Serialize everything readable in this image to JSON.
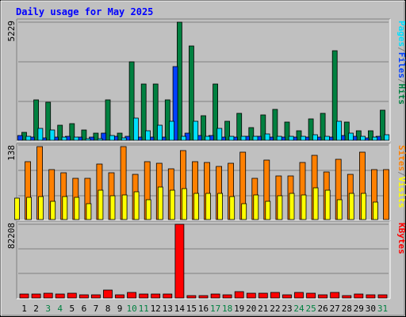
{
  "title": "Daily usage for May 2025",
  "colors": {
    "frame_bg": "#c0c0c0",
    "plot_bg": "#c0c0c0",
    "grid": "#808080",
    "title": "#0000ff",
    "hits": "#008040",
    "files": "#0040ff",
    "pages": "#00e0ff",
    "visits": "#ffff00",
    "sites": "#ff8000",
    "kbytes": "#ff0000",
    "weekend_label": "#008040",
    "weekday_label": "#000000"
  },
  "chart_data": [
    {
      "type": "bar",
      "name": "hits-files-pages",
      "ymax_label": "5229",
      "ylim": [
        0,
        5229
      ],
      "legend": [
        "Pages",
        "/",
        "Files",
        "/",
        "Hits"
      ],
      "x": [
        "1",
        "2",
        "3",
        "4",
        "5",
        "6",
        "7",
        "8",
        "9",
        "10",
        "11",
        "12",
        "13",
        "14",
        "15",
        "16",
        "17",
        "18",
        "19",
        "20",
        "21",
        "22",
        "23",
        "24",
        "25",
        "26",
        "27",
        "28",
        "29",
        "30",
        "31"
      ],
      "series": [
        {
          "name": "Hits",
          "values": [
            350,
            1780,
            1700,
            680,
            720,
            440,
            320,
            1780,
            320,
            3460,
            2480,
            2480,
            1780,
            5229,
            4180,
            1080,
            2480,
            840,
            1180,
            550,
            1110,
            1380,
            800,
            420,
            930,
            1200,
            3950,
            820,
            420,
            420,
            1350
          ]
        },
        {
          "name": "Files",
          "values": [
            210,
            150,
            120,
            150,
            190,
            140,
            140,
            320,
            170,
            190,
            150,
            150,
            150,
            3260,
            330,
            200,
            200,
            140,
            130,
            190,
            160,
            140,
            130,
            140,
            150,
            140,
            150,
            220,
            180,
            120,
            160
          ]
        },
        {
          "name": "Pages",
          "values": [
            170,
            510,
            440,
            140,
            140,
            80,
            70,
            200,
            100,
            1000,
            420,
            650,
            840,
            170,
            830,
            170,
            520,
            170,
            170,
            170,
            280,
            170,
            170,
            180,
            240,
            170,
            850,
            300,
            160,
            150,
            230
          ]
        }
      ]
    },
    {
      "type": "bar",
      "name": "visits-sites",
      "ymax_label": "138",
      "ylim": [
        0,
        138
      ],
      "legend": [
        "Sites",
        "/",
        "Visits"
      ],
      "x": [
        "1",
        "2",
        "3",
        "4",
        "5",
        "6",
        "7",
        "8",
        "9",
        "10",
        "11",
        "12",
        "13",
        "14",
        "15",
        "16",
        "17",
        "18",
        "19",
        "20",
        "21",
        "22",
        "23",
        "24",
        "25",
        "26",
        "27",
        "28",
        "29",
        "30",
        "31"
      ],
      "series": [
        {
          "name": "Sites",
          "values": [
            110,
            138,
            95,
            88,
            78,
            78,
            105,
            88,
            138,
            86,
            110,
            106,
            96,
            130,
            110,
            108,
            101,
            106,
            128,
            78,
            113,
            82,
            83,
            108,
            122,
            90,
            114,
            86,
            128,
            95,
            95
          ]
        },
        {
          "name": "Visits",
          "values": [
            40,
            42,
            43,
            34,
            43,
            42,
            30,
            55,
            45,
            47,
            52,
            38,
            62,
            56,
            58,
            49,
            49,
            49,
            43,
            30,
            47,
            35,
            45,
            49,
            46,
            60,
            55,
            38,
            50,
            49,
            33
          ]
        }
      ]
    },
    {
      "type": "bar",
      "name": "kbytes",
      "ymax_label": "82208",
      "ylim": [
        0,
        82208
      ],
      "legend": [
        "KBytes"
      ],
      "x": [
        "1",
        "2",
        "3",
        "4",
        "5",
        "6",
        "7",
        "8",
        "9",
        "10",
        "11",
        "12",
        "13",
        "14",
        "15",
        "16",
        "17",
        "18",
        "19",
        "20",
        "21",
        "22",
        "23",
        "24",
        "25",
        "26",
        "27",
        "28",
        "29",
        "30",
        "31"
      ],
      "series": [
        {
          "name": "KBytes",
          "values": [
            4500,
            4600,
            5000,
            4600,
            5600,
            3200,
            3200,
            8400,
            3700,
            6200,
            4600,
            4600,
            4800,
            82208,
            2600,
            3000,
            4300,
            3700,
            6900,
            5200,
            5600,
            6400,
            3700,
            6400,
            5600,
            3700,
            6600,
            3000,
            4000,
            3200,
            3700
          ]
        }
      ]
    }
  ],
  "x_labels": [
    "1",
    "2",
    "3",
    "4",
    "5",
    "6",
    "7",
    "8",
    "9",
    "10",
    "11",
    "12",
    "13",
    "14",
    "15",
    "16",
    "17",
    "18",
    "19",
    "20",
    "21",
    "22",
    "23",
    "24",
    "25",
    "26",
    "27",
    "28",
    "29",
    "30",
    "31"
  ],
  "weekend_days": [
    3,
    4,
    10,
    11,
    17,
    18,
    24,
    25,
    31
  ]
}
